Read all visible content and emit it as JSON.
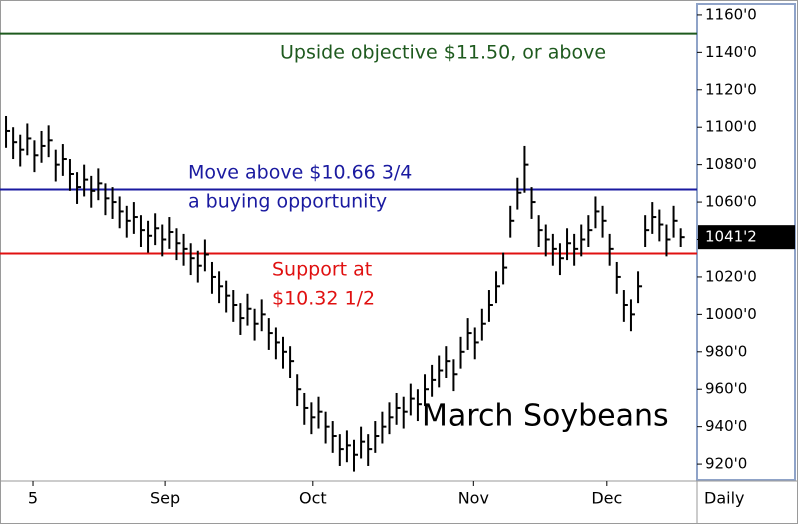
{
  "chart_data": {
    "type": "ohlc",
    "title": "March Soybeans",
    "period_label": "Daily",
    "color": "#000000",
    "ylim": [
      911.5,
      1165.3
    ],
    "xlim": [
      -0.85,
      97.3
    ],
    "yticks": [
      {
        "value": 920,
        "label": "920'0"
      },
      {
        "value": 940,
        "label": "940'0"
      },
      {
        "value": 960,
        "label": "960'0"
      },
      {
        "value": 980,
        "label": "980'0"
      },
      {
        "value": 1000,
        "label": "1000'0"
      },
      {
        "value": 1020,
        "label": "1020'0"
      },
      {
        "value": 1040,
        "label": "1040'0"
      },
      {
        "value": 1060,
        "label": "1060'0"
      },
      {
        "value": 1080,
        "label": "1080'0"
      },
      {
        "value": 1100,
        "label": "1100'0"
      },
      {
        "value": 1120,
        "label": "1120'0"
      },
      {
        "value": 1140,
        "label": "1140'0"
      },
      {
        "value": 1160,
        "label": "1160'0"
      }
    ],
    "xticks": [
      {
        "value": 3.8,
        "label": "5"
      },
      {
        "value": 22.4,
        "label": "Sep"
      },
      {
        "value": 43.2,
        "label": "Oct"
      },
      {
        "value": 65.8,
        "label": "Nov"
      },
      {
        "value": 84.6,
        "label": "Dec"
      }
    ],
    "last_price": {
      "value": 1041.25,
      "label": "1041'2"
    },
    "hlines": [
      {
        "value": 1150,
        "color": "#1e5a1e",
        "text": [
          "Upside objective $11.50, or above"
        ]
      },
      {
        "value": 1066.75,
        "color": "#1a1aa0",
        "text": [
          "Move above $10.66 3/4",
          "a buying opportunity"
        ]
      },
      {
        "value": 1032.5,
        "color": "#e01010",
        "text": [
          "Support at",
          "$10.32 1/2"
        ]
      }
    ],
    "high": [
      1106,
      1100,
      1096,
      1102,
      1093,
      1098,
      1101,
      1088,
      1091,
      1083,
      1076,
      1080,
      1074,
      1078,
      1070,
      1068,
      1063,
      1058,
      1060,
      1053,
      1050,
      1054,
      1048,
      1052,
      1046,
      1043,
      1038,
      1034,
      1040,
      1028,
      1023,
      1018,
      1013,
      1006,
      1011,
      1003,
      1008,
      998,
      993,
      988,
      983,
      968,
      958,
      953,
      956,
      948,
      943,
      936,
      938,
      933,
      940,
      936,
      943,
      948,
      953,
      958,
      956,
      963,
      960,
      968,
      973,
      978,
      983,
      976,
      988,
      998,
      993,
      1003,
      1013,
      1023,
      1033,
      1058,
      1073,
      1090,
      1068,
      1053,
      1048,
      1043,
      1038,
      1046,
      1043,
      1048,
      1053,
      1063,
      1058,
      1043,
      1028,
      1013,
      1008,
      1023,
      1053,
      1060,
      1056,
      1048,
      1058,
      1046
    ],
    "low": [
      1089,
      1083,
      1079,
      1085,
      1076,
      1081,
      1084,
      1071,
      1074,
      1066,
      1059,
      1063,
      1057,
      1061,
      1053,
      1051,
      1046,
      1041,
      1043,
      1036,
      1033,
      1037,
      1031,
      1035,
      1029,
      1026,
      1021,
      1017,
      1023,
      1011,
      1006,
      1001,
      996,
      989,
      994,
      986,
      991,
      981,
      976,
      971,
      966,
      951,
      941,
      936,
      939,
      931,
      926,
      919,
      921,
      916,
      923,
      919,
      926,
      931,
      936,
      941,
      939,
      946,
      943,
      951,
      956,
      961,
      966,
      959,
      971,
      981,
      976,
      986,
      996,
      1006,
      1016,
      1041,
      1056,
      1065,
      1051,
      1036,
      1031,
      1026,
      1021,
      1029,
      1026,
      1031,
      1036,
      1046,
      1041,
      1026,
      1011,
      996,
      991,
      1006,
      1036,
      1043,
      1039,
      1031,
      1041,
      1036
    ],
    "close": [
      1098,
      1092,
      1088,
      1094,
      1085,
      1090,
      1093,
      1080,
      1083,
      1075,
      1068,
      1072,
      1066,
      1070,
      1062,
      1060,
      1055,
      1050,
      1052,
      1045,
      1042,
      1046,
      1040,
      1044,
      1038,
      1035,
      1030,
      1026,
      1032,
      1020,
      1015,
      1010,
      1005,
      998,
      1003,
      995,
      1000,
      990,
      985,
      980,
      975,
      960,
      950,
      945,
      948,
      940,
      935,
      928,
      930,
      925,
      932,
      928,
      935,
      940,
      945,
      950,
      948,
      955,
      952,
      960,
      965,
      970,
      975,
      968,
      980,
      990,
      985,
      995,
      1005,
      1015,
      1025,
      1050,
      1065,
      1080,
      1060,
      1045,
      1040,
      1035,
      1030,
      1038,
      1035,
      1040,
      1045,
      1055,
      1050,
      1035,
      1020,
      1005,
      1000,
      1015,
      1045,
      1052,
      1048,
      1040,
      1050,
      1041.25
    ]
  }
}
